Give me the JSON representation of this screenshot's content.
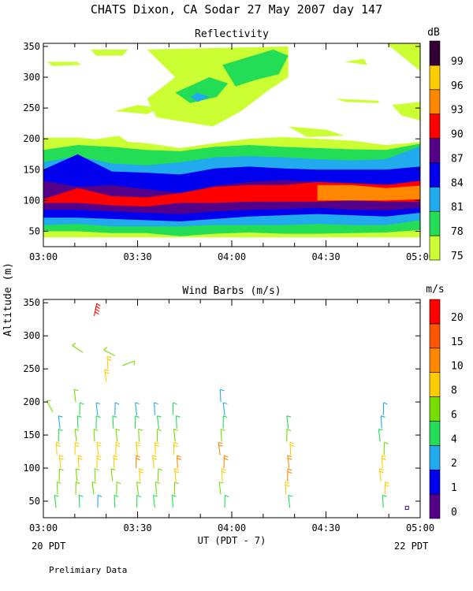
{
  "title": "CHATS Dixon, CA  Sodar  27 May 2007  day 147",
  "y_axis_label": "Altitude (m)",
  "x_axis_label": "UT  (PDT - 7)",
  "left_bottom_note": "20 PDT",
  "right_bottom_note": "22 PDT",
  "footer_note": "Prelimiary Data",
  "chart_data": [
    {
      "type": "heatmap",
      "title": "Reflectivity",
      "ylabel": "Altitude (m)",
      "ylim": [
        25,
        355
      ],
      "y_ticks": [
        50,
        100,
        150,
        200,
        250,
        300,
        350
      ],
      "x_ticks": [
        "03:00",
        "03:30",
        "04:00",
        "04:30",
        "05:00"
      ],
      "xlim_hours": [
        3.0,
        5.0
      ],
      "colorbar": {
        "unit": "dB",
        "levels": [
          75,
          78,
          81,
          84,
          87,
          90,
          93,
          96,
          99
        ],
        "colors": [
          "#ccff33",
          "#22dd55",
          "#22aaee",
          "#0000ee",
          "#550088",
          "#ff0000",
          "#ff8800",
          "#ffcc00",
          "#330033"
        ]
      },
      "bands": [
        {
          "level": 75,
          "top": [
            202,
            202,
            197,
            193,
            185,
            193,
            200,
            203,
            200,
            197,
            190,
            195
          ]
        },
        {
          "level": 78,
          "top": [
            182,
            190,
            187,
            182,
            180,
            187,
            190,
            187,
            185,
            183,
            182,
            192
          ]
        },
        {
          "level": 81,
          "top": [
            162,
            172,
            160,
            157,
            162,
            170,
            172,
            170,
            167,
            165,
            167,
            188
          ]
        },
        {
          "level": 84,
          "top": [
            150,
            175,
            147,
            145,
            142,
            152,
            155,
            152,
            150,
            150,
            150,
            155
          ]
        },
        {
          "level": 87,
          "top": [
            132,
            122,
            125,
            118,
            112,
            124,
            130,
            133,
            130,
            128,
            127,
            125
          ]
        },
        {
          "level": 90,
          "top": [
            102,
            120,
            107,
            105,
            112,
            122,
            125,
            125,
            130,
            128,
            125,
            132
          ]
        },
        {
          "level": 93,
          "top": [
            null,
            null,
            null,
            null,
            null,
            null,
            null,
            null,
            125,
            125,
            120,
            124
          ]
        }
      ],
      "bands_bottom": [
        {
          "level": 75,
          "bottom": [
            40,
            40,
            40,
            40,
            40,
            40,
            40,
            40,
            40,
            40,
            40,
            40
          ]
        },
        {
          "level": 78,
          "bottom": [
            50,
            50,
            47,
            47,
            42,
            46,
            48,
            46,
            46,
            47,
            48,
            52
          ]
        },
        {
          "level": 81,
          "bottom": [
            60,
            62,
            58,
            58,
            58,
            60,
            60,
            60,
            62,
            60,
            60,
            68
          ]
        },
        {
          "level": 84,
          "bottom": [
            72,
            72,
            70,
            68,
            66,
            70,
            74,
            76,
            78,
            76,
            74,
            80
          ]
        },
        {
          "level": 87,
          "bottom": [
            85,
            85,
            82,
            80,
            78,
            82,
            85,
            86,
            88,
            85,
            84,
            88
          ]
        },
        {
          "level": 90,
          "bottom": [
            96,
            96,
            92,
            90,
            96,
            96,
            98,
            98,
            98,
            100,
            98,
            98
          ]
        },
        {
          "level": 93,
          "bottom": [
            null,
            null,
            null,
            null,
            null,
            null,
            null,
            null,
            100,
            100,
            100,
            102
          ]
        }
      ],
      "cloud_cells": [
        {
          "level": 75,
          "points": [
            [
              3.55,
              345
            ],
            [
              4.3,
              350
            ],
            [
              4.3,
              300
            ],
            [
              4.2,
              280
            ],
            [
              4.05,
              245
            ],
            [
              3.9,
              220
            ],
            [
              3.6,
              235
            ],
            [
              3.55,
              265
            ],
            [
              3.7,
              300
            ]
          ]
        },
        {
          "level": 78,
          "points": [
            [
              3.95,
              320
            ],
            [
              4.22,
              345
            ],
            [
              4.3,
              335
            ],
            [
              4.25,
              305
            ],
            [
              4.12,
              295
            ],
            [
              4.02,
              285
            ]
          ]
        },
        {
          "level": 78,
          "points": [
            [
              3.7,
              275
            ],
            [
              3.88,
              300
            ],
            [
              3.98,
              290
            ],
            [
              3.92,
              268
            ],
            [
              3.78,
              258
            ]
          ]
        },
        {
          "level": 81,
          "points": [
            [
              3.78,
              268
            ],
            [
              3.82,
              275
            ],
            [
              3.88,
              268
            ],
            [
              3.82,
              260
            ]
          ]
        },
        {
          "level": 75,
          "points": [
            [
              3.02,
              325
            ],
            [
              3.18,
              325
            ],
            [
              3.2,
              320
            ],
            [
              3.05,
              318
            ]
          ]
        },
        {
          "level": 75,
          "points": [
            [
              3.25,
              345
            ],
            [
              3.45,
              345
            ],
            [
              3.42,
              335
            ],
            [
              3.28,
              335
            ]
          ]
        },
        {
          "level": 75,
          "points": [
            [
              3.25,
              198
            ],
            [
              3.4,
              205
            ],
            [
              3.45,
              195
            ],
            [
              3.3,
              190
            ]
          ]
        },
        {
          "level": 75,
          "points": [
            [
              3.38,
              245
            ],
            [
              3.5,
              255
            ],
            [
              3.62,
              250
            ],
            [
              3.55,
              240
            ]
          ]
        },
        {
          "level": 75,
          "points": [
            [
              4.55,
              265
            ],
            [
              4.78,
              262
            ],
            [
              4.78,
              258
            ],
            [
              4.6,
              260
            ]
          ]
        },
        {
          "level": 75,
          "points": [
            [
              4.6,
              325
            ],
            [
              4.7,
              330
            ],
            [
              4.72,
              320
            ]
          ]
        },
        {
          "level": 75,
          "points": [
            [
              4.82,
              355
            ],
            [
              5.0,
              355
            ],
            [
              5.0,
              310
            ],
            [
              4.92,
              330
            ]
          ]
        },
        {
          "level": 75,
          "points": [
            [
              4.85,
              255
            ],
            [
              5.0,
              260
            ],
            [
              5.0,
              230
            ],
            [
              4.9,
              238
            ]
          ]
        },
        {
          "level": 75,
          "points": [
            [
              4.3,
              220
            ],
            [
              4.5,
              215
            ],
            [
              4.6,
              205
            ],
            [
              4.4,
              203
            ]
          ]
        }
      ]
    },
    {
      "type": "scatter",
      "title": "Wind Barbs (m/s)",
      "ylabel": "Altitude (m)",
      "ylim": [
        25,
        355
      ],
      "y_ticks": [
        50,
        100,
        150,
        200,
        250,
        300,
        350
      ],
      "x_ticks": [
        "03:00",
        "03:30",
        "04:00",
        "04:30",
        "05:00"
      ],
      "xlim_hours": [
        3.0,
        5.0
      ],
      "colorbar": {
        "unit": "m/s",
        "labels": [
          0,
          1,
          2,
          4,
          6,
          8,
          10,
          15,
          20
        ],
        "colors": [
          "#550088",
          "#0000ee",
          "#22aaee",
          "#22dd55",
          "#77dd00",
          "#ffcc00",
          "#ff8800",
          "#ff5500",
          "#ff0000"
        ]
      },
      "barb_columns": [
        {
          "time_hours": 3.08,
          "altitudes": [
            40,
            60,
            80,
            100,
            120,
            140,
            160
          ],
          "speeds": [
            4,
            6,
            6,
            8,
            8,
            4,
            2
          ]
        },
        {
          "time_hours": 3.18,
          "altitudes": [
            40,
            60,
            80,
            100,
            120,
            140,
            160,
            180,
            200
          ],
          "speeds": [
            4,
            6,
            6,
            8,
            8,
            6,
            4,
            4,
            6
          ]
        },
        {
          "time_hours": 3.28,
          "altitudes": [
            40,
            60,
            80,
            100,
            120,
            140,
            160,
            180
          ],
          "speeds": [
            2,
            6,
            6,
            8,
            8,
            6,
            4,
            2
          ]
        },
        {
          "time_hours": 3.33,
          "altitudes": [
            230,
            250
          ],
          "speeds": [
            8,
            8
          ]
        },
        {
          "time_hours": 3.38,
          "altitudes": [
            40,
            60,
            80,
            100,
            120,
            140,
            160,
            180
          ],
          "speeds": [
            4,
            6,
            6,
            8,
            8,
            6,
            4,
            2
          ]
        },
        {
          "time_hours": 3.5,
          "altitudes": [
            40,
            60,
            80,
            100,
            120,
            140,
            160,
            180
          ],
          "speeds": [
            4,
            6,
            8,
            10,
            8,
            6,
            4,
            2
          ]
        },
        {
          "time_hours": 3.6,
          "altitudes": [
            40,
            60,
            80,
            100,
            120,
            140,
            160,
            180
          ],
          "speeds": [
            4,
            6,
            6,
            8,
            8,
            6,
            4,
            2
          ]
        },
        {
          "time_hours": 3.7,
          "altitudes": [
            40,
            60,
            80,
            100,
            120,
            140,
            160,
            180
          ],
          "speeds": [
            4,
            6,
            8,
            10,
            8,
            6,
            4,
            4
          ]
        },
        {
          "time_hours": 3.95,
          "altitudes": [
            40,
            60,
            80,
            100,
            120,
            140,
            160,
            180,
            200
          ],
          "speeds": [
            4,
            6,
            8,
            10,
            10,
            6,
            4,
            2,
            2
          ]
        },
        {
          "time_hours": 4.3,
          "altitudes": [
            40,
            60,
            80,
            100,
            120,
            140,
            160
          ],
          "speeds": [
            4,
            8,
            10,
            10,
            8,
            6,
            4
          ]
        },
        {
          "time_hours": 4.8,
          "altitudes": [
            40,
            60,
            80,
            100,
            120,
            140,
            160,
            180
          ],
          "speeds": [
            4,
            8,
            8,
            8,
            6,
            4,
            2,
            2
          ]
        }
      ],
      "barb_outliers": [
        {
          "time_hours": 3.27,
          "altitude": 330,
          "speed": 20
        },
        {
          "time_hours": 3.21,
          "altitude": 275,
          "speed": 6
        },
        {
          "time_hours": 3.38,
          "altitude": 270,
          "speed": 6
        },
        {
          "time_hours": 3.42,
          "altitude": 255,
          "speed": 6
        },
        {
          "time_hours": 3.05,
          "altitude": 185,
          "speed": 6
        }
      ],
      "calm_marker": {
        "time_hours": 4.93,
        "altitude": 40,
        "speed": 0
      }
    }
  ]
}
